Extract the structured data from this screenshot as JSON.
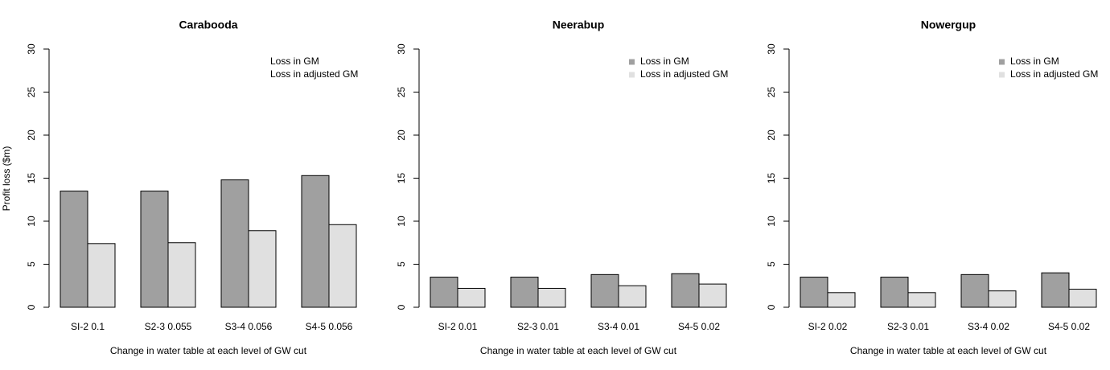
{
  "chart_data": [
    {
      "type": "bar",
      "title": "Carabooda",
      "y_label": "Profit loss ($m)",
      "x_label": "Change in water table at each level of GW cut",
      "categories": [
        "SI-2 0.1",
        "S2-3 0.055",
        "S3-4 0.056",
        "S4-5 0.056"
      ],
      "series": [
        {
          "name": "Loss in GM",
          "color": "#a0a0a0",
          "values": [
            13.5,
            13.5,
            14.8,
            15.3
          ]
        },
        {
          "name": "Loss in adjusted GM",
          "color": "#e0e0e0",
          "values": [
            7.4,
            7.5,
            8.9,
            9.6
          ]
        }
      ],
      "ylim": [
        0,
        30
      ],
      "yticks": [
        0,
        5,
        10,
        15,
        20,
        25,
        30
      ],
      "legend": "top-right",
      "legend_symbols": false
    },
    {
      "type": "bar",
      "title": "Neerabup",
      "x_label": "Change in water table at each level of GW cut",
      "categories": [
        "SI-2 0.01",
        "S2-3 0.01",
        "S3-4 0.01",
        "S4-5 0.02"
      ],
      "series": [
        {
          "name": "Loss in GM",
          "color": "#a0a0a0",
          "values": [
            3.5,
            3.5,
            3.8,
            3.9
          ]
        },
        {
          "name": "Loss in adjusted GM",
          "color": "#e0e0e0",
          "values": [
            2.2,
            2.2,
            2.5,
            2.7
          ]
        }
      ],
      "ylim": [
        0,
        30
      ],
      "yticks": [
        0,
        5,
        10,
        15,
        20,
        25,
        30
      ],
      "legend": "top-right",
      "legend_symbols": true
    },
    {
      "type": "bar",
      "title": "Nowergup",
      "x_label": "Change in water table at each level of GW cut",
      "categories": [
        "SI-2 0.02",
        "S2-3 0.01",
        "S3-4 0.02",
        "S4-5 0.02"
      ],
      "series": [
        {
          "name": "Loss in GM",
          "color": "#a0a0a0",
          "values": [
            3.5,
            3.5,
            3.8,
            4.0
          ]
        },
        {
          "name": "Loss in adjusted GM",
          "color": "#e0e0e0",
          "values": [
            1.7,
            1.7,
            1.9,
            2.1
          ]
        }
      ],
      "ylim": [
        0,
        30
      ],
      "yticks": [
        0,
        5,
        10,
        15,
        20,
        25,
        30
      ],
      "legend": "top-right",
      "legend_symbols": true
    }
  ]
}
